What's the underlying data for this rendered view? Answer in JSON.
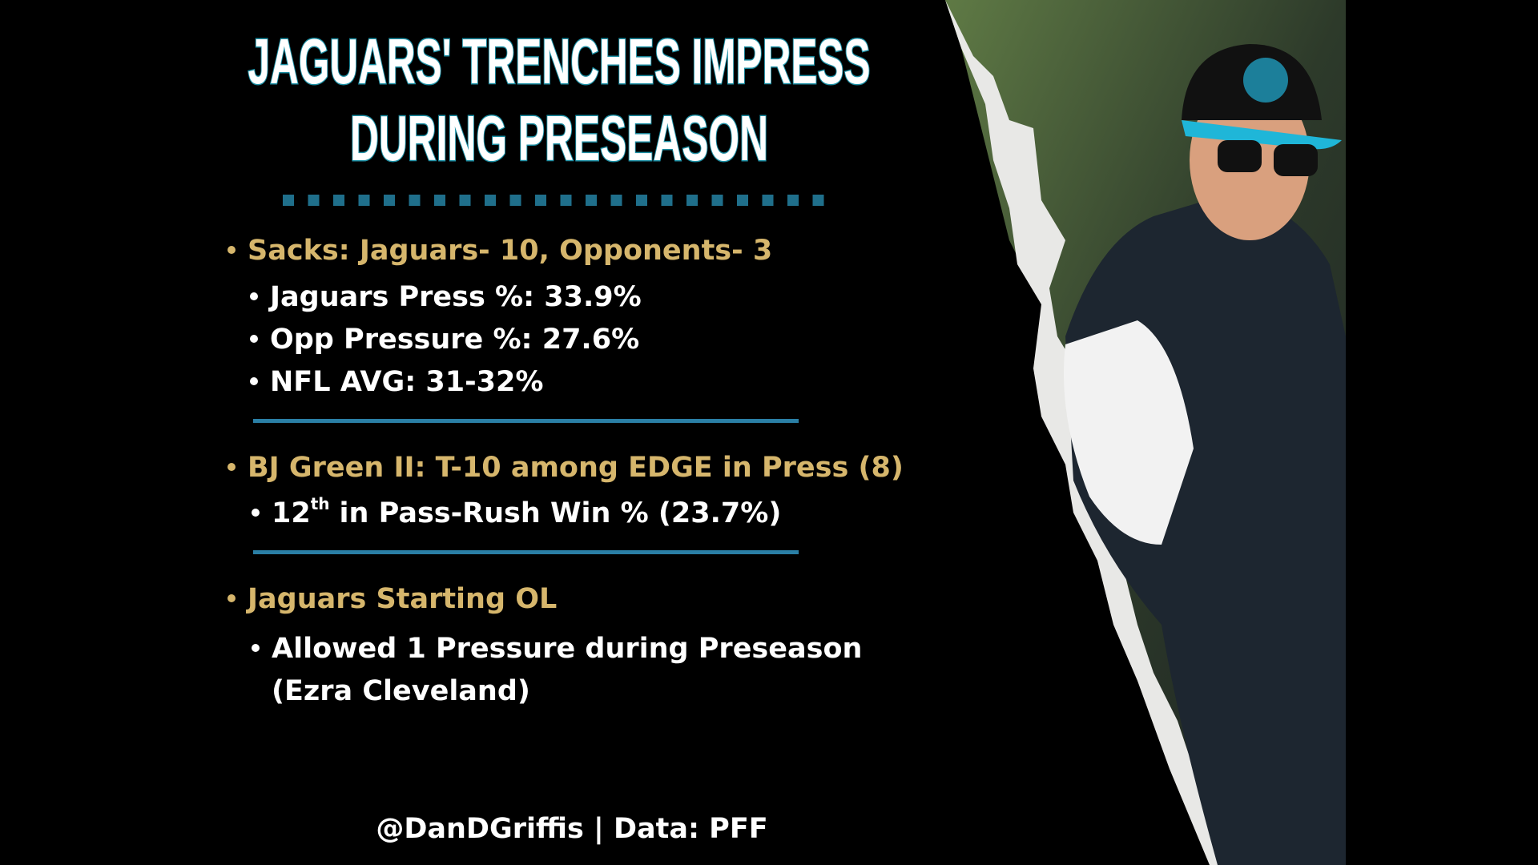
{
  "header": {
    "title_lines": [
      "JAGUARS' TRENCHES IMPRESS",
      "DURING PRESEASON"
    ]
  },
  "sections": [
    {
      "heading": "Sacks: Jaguars- 10, Opponents- 3",
      "items": [
        "Jaguars Press %: 33.9%",
        "Opp Pressure %: 27.6%",
        "NFL AVG: 31-32%"
      ]
    },
    {
      "heading": "BJ Green II: T-10 among EDGE in Press (8)",
      "item": {
        "number": "12",
        "superscript": "th",
        "text": "in Pass-Rush Win % (23.7%)"
      }
    },
    {
      "heading": "Jaguars Starting OL",
      "item_lines": [
        "Allowed 1 Pressure during Preseason",
        "(Ezra Cleveland)"
      ]
    }
  ],
  "footer": "@DanDGriffis | Data: PFF"
}
